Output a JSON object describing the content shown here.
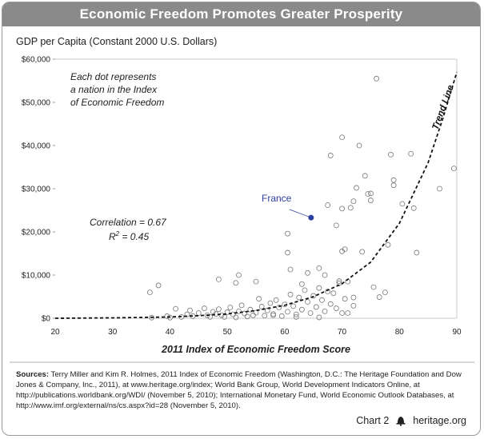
{
  "title": "Economic Freedom Promotes Greater Prosperity",
  "chart_data": {
    "type": "scatter",
    "ylabel": "GDP per Capita (Constant 2000 U.S. Dollars)",
    "xlabel": "2011 Index of Economic Freedom Score",
    "xlim": [
      20,
      90
    ],
    "ylim": [
      0,
      60000
    ],
    "x_ticks": [
      "20",
      "30",
      "40",
      "50",
      "60",
      "70",
      "80",
      "90"
    ],
    "y_ticks": [
      "$0",
      "$10,000",
      "$20,000",
      "$30,000",
      "$40,000",
      "$50,000",
      "$60,000"
    ],
    "annotation_lines": [
      "Each dot represents",
      "a nation in the Index",
      "of Economic Freedom"
    ],
    "correlation": "Correlation = 0.67",
    "r2_base": "R",
    "r2_sup": "2",
    "r2_rest": " = 0.45",
    "trend_label": "Trend Line",
    "highlight": {
      "label": "France",
      "x": 64.6,
      "y": 23300,
      "color": "#2d3fa0"
    },
    "trend_line": {
      "x": [
        20,
        30,
        40,
        45,
        50,
        55,
        60,
        65,
        70,
        75,
        80,
        85,
        87.5,
        90
      ],
      "y": [
        0,
        100,
        300,
        600,
        1000,
        1800,
        3000,
        5000,
        8000,
        13000,
        22000,
        36000,
        46000,
        57000
      ]
    },
    "points": [
      [
        36.5,
        6000
      ],
      [
        38.0,
        7600
      ],
      [
        36.8,
        150
      ],
      [
        40.0,
        150
      ],
      [
        42.0,
        300
      ],
      [
        43.0,
        900
      ],
      [
        43.5,
        1800
      ],
      [
        44.0,
        500
      ],
      [
        45.0,
        1200
      ],
      [
        46.0,
        2300
      ],
      [
        46.5,
        700
      ],
      [
        47.0,
        300
      ],
      [
        47.5,
        1500
      ],
      [
        48.0,
        1000
      ],
      [
        48.5,
        2100
      ],
      [
        49.0,
        700
      ],
      [
        49.5,
        300
      ],
      [
        50.0,
        1400
      ],
      [
        50.5,
        2500
      ],
      [
        51.0,
        900
      ],
      [
        51.5,
        200
      ],
      [
        52.0,
        1600
      ],
      [
        52.5,
        3000
      ],
      [
        53.0,
        1100
      ],
      [
        53.5,
        400
      ],
      [
        54.0,
        2000
      ],
      [
        54.5,
        700
      ],
      [
        55.0,
        1300
      ],
      [
        55.5,
        4500
      ],
      [
        56.0,
        2700
      ],
      [
        56.5,
        600
      ],
      [
        57.0,
        1800
      ],
      [
        57.5,
        3500
      ],
      [
        58.0,
        1000
      ],
      [
        58.5,
        4200
      ],
      [
        59.0,
        2500
      ],
      [
        59.5,
        500
      ],
      [
        60.0,
        3200
      ],
      [
        60.5,
        1500
      ],
      [
        61.0,
        5500
      ],
      [
        61.5,
        2800
      ],
      [
        62.0,
        900
      ],
      [
        62.5,
        4800
      ],
      [
        63.0,
        2000
      ],
      [
        63.5,
        6500
      ],
      [
        64.0,
        3800
      ],
      [
        64.5,
        1200
      ],
      [
        65.0,
        5200
      ],
      [
        65.5,
        2600
      ],
      [
        66.0,
        7000
      ],
      [
        66.5,
        4200
      ],
      [
        67.0,
        1600
      ],
      [
        67.5,
        6200
      ],
      [
        68.0,
        3300
      ],
      [
        68.5,
        5800
      ],
      [
        69.0,
        2300
      ],
      [
        69.5,
        8600
      ],
      [
        70.0,
        1200
      ],
      [
        70.5,
        4500
      ],
      [
        48.5,
        9000
      ],
      [
        51.5,
        8200
      ],
      [
        52.0,
        10000
      ],
      [
        55.0,
        8500
      ],
      [
        60.5,
        19600
      ],
      [
        60.5,
        15200
      ],
      [
        61.0,
        11300
      ],
      [
        63.0,
        7900
      ],
      [
        64.0,
        10500
      ],
      [
        66.0,
        11600
      ],
      [
        67.0,
        10000
      ],
      [
        67.5,
        26200
      ],
      [
        68.0,
        37700
      ],
      [
        69.0,
        21500
      ],
      [
        69.5,
        8100
      ],
      [
        70.0,
        15500
      ],
      [
        70.0,
        41900
      ],
      [
        70.0,
        25400
      ],
      [
        70.5,
        16000
      ],
      [
        71.0,
        8500
      ],
      [
        71.5,
        25600
      ],
      [
        72.0,
        27100
      ],
      [
        72.5,
        30200
      ],
      [
        73.0,
        40000
      ],
      [
        73.5,
        15400
      ],
      [
        74.0,
        33000
      ],
      [
        74.5,
        28800
      ],
      [
        75.0,
        27300
      ],
      [
        75.0,
        28900
      ],
      [
        75.5,
        7200
      ],
      [
        76.0,
        55500
      ],
      [
        76.5,
        4900
      ],
      [
        77.5,
        6000
      ],
      [
        78.0,
        17000
      ],
      [
        78.5,
        37900
      ],
      [
        79.0,
        32000
      ],
      [
        79.0,
        30800
      ],
      [
        80.5,
        26500
      ],
      [
        82.0,
        38100
      ],
      [
        82.5,
        25500
      ],
      [
        83.0,
        15200
      ],
      [
        87.0,
        30000
      ],
      [
        89.5,
        34700
      ],
      [
        41.0,
        2200
      ],
      [
        39.5,
        500
      ],
      [
        58.0,
        700
      ],
      [
        62.0,
        300
      ],
      [
        66.0,
        200
      ],
      [
        71.0,
        1200
      ],
      [
        72.0,
        2900
      ],
      [
        72.0,
        4800
      ]
    ]
  },
  "sources": {
    "label": "Sources:",
    "text": " Terry Miller and Kim R. Holmes, 2011 Index of Economic Freedom (Washington, D.C.: The Heritage Foundation and Dow Jones & Company, Inc., 2011), at www.heritage.org/index; World Bank Group, World Development Indicators Online, at http://publications.worldbank.org/WDI/ (November 5, 2010); International Monetary Fund, World Economic Outlook Databases, at http://www.imf.org/external/ns/cs.aspx?id=28 (November 5, 2010)."
  },
  "footer": {
    "chart_label": "Chart 2",
    "bell_icon": "liberty-bell-icon",
    "site": "heritage.org"
  }
}
